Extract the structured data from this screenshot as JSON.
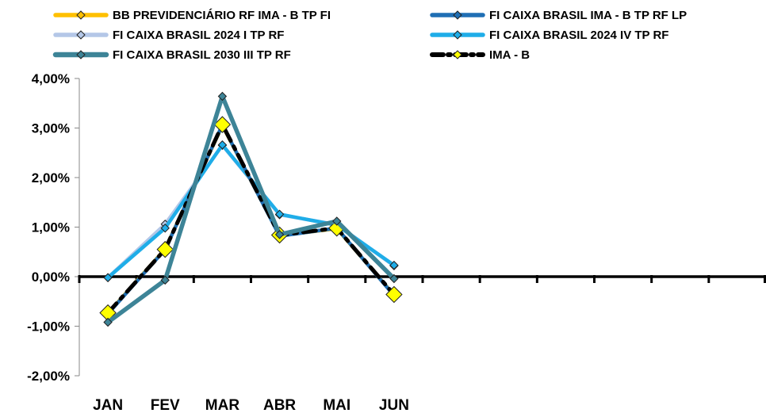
{
  "chart_data": {
    "type": "line",
    "title": "",
    "xlabel": "",
    "ylabel": "",
    "categories": [
      "JAN",
      "FEV",
      "MAR",
      "ABR",
      "MAI",
      "JUN"
    ],
    "x_slots": 12,
    "ylim": [
      -2,
      4
    ],
    "yticks": [
      -2,
      -1,
      0,
      1,
      2,
      3,
      4
    ],
    "ytick_labels": [
      "-2,00%",
      "-1,00%",
      "0,00%",
      "1,00%",
      "2,00%",
      "3,00%",
      "4,00%"
    ],
    "grid": false,
    "legend_position": "top",
    "series": [
      {
        "name": "BB PREVIDENCIÁRIO RF IMA - B TP FI",
        "color": "#FFC000",
        "values": [
          -0.74,
          0.56,
          3.05,
          0.83,
          0.97,
          -0.37
        ]
      },
      {
        "name": "FI CAIXA BRASIL IMA - B TP RF LP",
        "color": "#1F6FB4",
        "values": [
          -0.75,
          0.55,
          3.06,
          0.82,
          0.98,
          -0.38
        ]
      },
      {
        "name": "FI CAIXA BRASIL 2024 I TP RF",
        "color": "#B4C7E7",
        "values": [
          -0.02,
          1.06,
          2.65,
          1.25,
          1.05,
          0.22
        ]
      },
      {
        "name": "FI CAIXA BRASIL 2024 IV TP RF",
        "color": "#1FADE8",
        "values": [
          -0.02,
          0.98,
          2.66,
          1.26,
          1.04,
          0.23
        ]
      },
      {
        "name": "FI CAIXA BRASIL 2030 III TP RF",
        "color": "#3D8497",
        "values": [
          -0.92,
          -0.07,
          3.64,
          0.85,
          1.12,
          -0.04
        ]
      },
      {
        "name": "IMA - B",
        "color": "#000000",
        "values": [
          -0.73,
          0.55,
          3.07,
          0.84,
          0.98,
          -0.36
        ]
      }
    ]
  }
}
